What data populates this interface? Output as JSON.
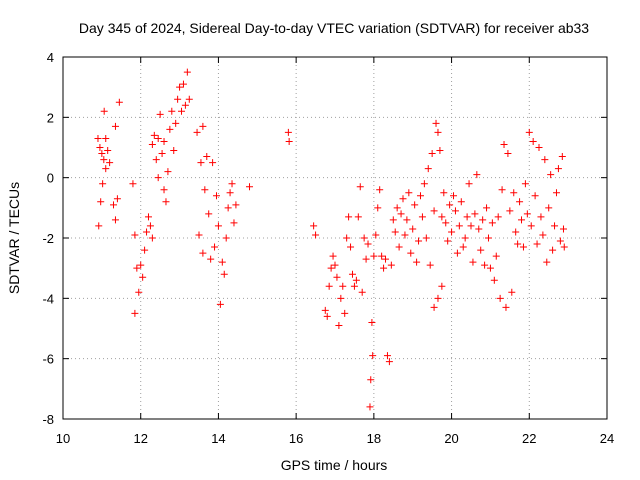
{
  "chart_data": {
    "type": "scatter",
    "title": "Day 345 of 2024, Sidereal Day-to-day VTEC variation (SDTVAR) for receiver ab33",
    "xlabel": "GPS time / hours",
    "ylabel": "SDTVAR / TECUs",
    "xlim": [
      10,
      24
    ],
    "ylim": [
      -8,
      4
    ],
    "xticks": [
      10,
      12,
      14,
      16,
      18,
      20,
      22,
      24
    ],
    "yticks": [
      -8,
      -6,
      -4,
      -2,
      0,
      2,
      4
    ],
    "grid": true,
    "marker": "+",
    "colors": {
      "series": "#ff0000",
      "grid": "#a0a0a0",
      "axis": "#000000"
    },
    "series": [
      {
        "name": "SDTVAR",
        "points": [
          [
            10.9,
            1.3
          ],
          [
            10.95,
            1.0
          ],
          [
            11.0,
            0.8
          ],
          [
            11.05,
            0.6
          ],
          [
            11.1,
            0.3
          ],
          [
            10.92,
            -1.6
          ],
          [
            10.97,
            -0.8
          ],
          [
            11.02,
            -0.2
          ],
          [
            11.06,
            2.2
          ],
          [
            11.1,
            1.3
          ],
          [
            11.15,
            0.9
          ],
          [
            11.2,
            0.5
          ],
          [
            11.35,
            1.7
          ],
          [
            11.45,
            2.5
          ],
          [
            11.3,
            -0.9
          ],
          [
            11.35,
            -1.4
          ],
          [
            11.4,
            -0.7
          ],
          [
            11.8,
            -0.2
          ],
          [
            11.85,
            -1.9
          ],
          [
            11.9,
            -3.0
          ],
          [
            11.95,
            -3.8
          ],
          [
            11.85,
            -4.5
          ],
          [
            12.0,
            -2.9
          ],
          [
            12.05,
            -3.3
          ],
          [
            12.1,
            -2.4
          ],
          [
            12.15,
            -1.8
          ],
          [
            12.2,
            -1.3
          ],
          [
            12.25,
            -1.6
          ],
          [
            12.3,
            -2.0
          ],
          [
            12.3,
            1.1
          ],
          [
            12.35,
            1.4
          ],
          [
            12.4,
            0.6
          ],
          [
            12.45,
            0.0
          ],
          [
            12.45,
            1.3
          ],
          [
            12.5,
            2.1
          ],
          [
            12.55,
            0.8
          ],
          [
            12.6,
            -0.4
          ],
          [
            12.6,
            1.2
          ],
          [
            12.65,
            -0.8
          ],
          [
            12.7,
            0.2
          ],
          [
            12.75,
            1.6
          ],
          [
            12.8,
            2.2
          ],
          [
            12.85,
            0.9
          ],
          [
            12.9,
            1.8
          ],
          [
            12.95,
            2.6
          ],
          [
            13.0,
            3.0
          ],
          [
            13.05,
            2.2
          ],
          [
            13.1,
            3.1
          ],
          [
            13.15,
            2.4
          ],
          [
            13.2,
            3.5
          ],
          [
            13.25,
            2.6
          ],
          [
            13.45,
            1.5
          ],
          [
            13.5,
            -1.9
          ],
          [
            13.55,
            0.5
          ],
          [
            13.6,
            1.7
          ],
          [
            13.6,
            -2.5
          ],
          [
            13.65,
            -0.4
          ],
          [
            13.7,
            0.7
          ],
          [
            13.75,
            -1.2
          ],
          [
            13.8,
            -2.7
          ],
          [
            13.85,
            0.5
          ],
          [
            13.9,
            -2.3
          ],
          [
            13.95,
            -0.6
          ],
          [
            14.0,
            -1.6
          ],
          [
            14.05,
            -4.2
          ],
          [
            14.1,
            -2.8
          ],
          [
            14.15,
            -3.2
          ],
          [
            14.2,
            -2.0
          ],
          [
            14.25,
            -1.0
          ],
          [
            14.3,
            -0.5
          ],
          [
            14.35,
            -0.2
          ],
          [
            14.4,
            -1.5
          ],
          [
            14.45,
            -0.9
          ],
          [
            14.8,
            -0.3
          ],
          [
            15.8,
            1.5
          ],
          [
            15.82,
            1.2
          ],
          [
            16.45,
            -1.6
          ],
          [
            16.5,
            -1.9
          ],
          [
            16.75,
            -4.4
          ],
          [
            16.8,
            -4.6
          ],
          [
            16.85,
            -3.6
          ],
          [
            16.9,
            -3.0
          ],
          [
            16.95,
            -2.6
          ],
          [
            17.0,
            -2.9
          ],
          [
            17.05,
            -3.3
          ],
          [
            17.1,
            -4.9
          ],
          [
            17.15,
            -4.0
          ],
          [
            17.2,
            -3.6
          ],
          [
            17.25,
            -4.5
          ],
          [
            17.3,
            -2.0
          ],
          [
            17.35,
            -1.3
          ],
          [
            17.4,
            -2.3
          ],
          [
            17.45,
            -3.2
          ],
          [
            17.5,
            -3.6
          ],
          [
            17.55,
            -3.4
          ],
          [
            17.6,
            -1.3
          ],
          [
            17.65,
            -0.3
          ],
          [
            17.7,
            -3.8
          ],
          [
            17.75,
            -2.0
          ],
          [
            17.8,
            -2.7
          ],
          [
            17.85,
            -2.2
          ],
          [
            17.9,
            -7.6
          ],
          [
            17.92,
            -6.7
          ],
          [
            17.95,
            -4.8
          ],
          [
            17.97,
            -5.9
          ],
          [
            18.0,
            -2.6
          ],
          [
            18.05,
            -1.9
          ],
          [
            18.1,
            -1.0
          ],
          [
            18.15,
            -0.4
          ],
          [
            18.2,
            -2.6
          ],
          [
            18.25,
            -3.0
          ],
          [
            18.3,
            -2.7
          ],
          [
            18.35,
            -5.9
          ],
          [
            18.4,
            -6.1
          ],
          [
            18.45,
            -2.9
          ],
          [
            18.5,
            -1.4
          ],
          [
            18.55,
            -1.8
          ],
          [
            18.6,
            -1.0
          ],
          [
            18.65,
            -2.3
          ],
          [
            18.7,
            -1.2
          ],
          [
            18.75,
            -0.7
          ],
          [
            18.8,
            -1.9
          ],
          [
            18.85,
            -1.4
          ],
          [
            18.9,
            -0.5
          ],
          [
            18.95,
            -2.5
          ],
          [
            19.0,
            -1.7
          ],
          [
            19.05,
            -0.9
          ],
          [
            19.1,
            -2.8
          ],
          [
            19.15,
            -2.1
          ],
          [
            19.2,
            -0.6
          ],
          [
            19.25,
            -1.3
          ],
          [
            19.3,
            -0.2
          ],
          [
            19.35,
            -2.0
          ],
          [
            19.4,
            0.3
          ],
          [
            19.45,
            -2.9
          ],
          [
            19.5,
            0.8
          ],
          [
            19.55,
            -1.1
          ],
          [
            19.6,
            1.8
          ],
          [
            19.65,
            1.5
          ],
          [
            19.7,
            0.9
          ],
          [
            19.75,
            -1.3
          ],
          [
            19.8,
            -0.5
          ],
          [
            19.85,
            -1.5
          ],
          [
            19.55,
            -4.3
          ],
          [
            19.65,
            -4.0
          ],
          [
            19.75,
            -3.6
          ],
          [
            19.9,
            -2.1
          ],
          [
            19.95,
            -0.9
          ],
          [
            20.0,
            -1.8
          ],
          [
            20.05,
            -0.6
          ],
          [
            20.1,
            -1.1
          ],
          [
            20.15,
            -2.5
          ],
          [
            20.2,
            -1.6
          ],
          [
            20.25,
            -0.8
          ],
          [
            20.3,
            -2.3
          ],
          [
            20.35,
            -2.0
          ],
          [
            20.4,
            -1.3
          ],
          [
            20.45,
            -0.2
          ],
          [
            20.5,
            -1.6
          ],
          [
            20.55,
            -2.8
          ],
          [
            20.6,
            -1.2
          ],
          [
            20.65,
            0.1
          ],
          [
            20.7,
            -1.7
          ],
          [
            20.75,
            -2.4
          ],
          [
            20.8,
            -1.4
          ],
          [
            20.85,
            -2.9
          ],
          [
            20.9,
            -1.0
          ],
          [
            20.95,
            -2.0
          ],
          [
            21.0,
            -3.0
          ],
          [
            21.05,
            -1.5
          ],
          [
            21.1,
            -3.4
          ],
          [
            21.15,
            -2.6
          ],
          [
            21.2,
            -1.3
          ],
          [
            21.25,
            -4.0
          ],
          [
            21.3,
            -0.4
          ],
          [
            21.35,
            1.1
          ],
          [
            21.4,
            -4.3
          ],
          [
            21.45,
            0.8
          ],
          [
            21.5,
            -1.1
          ],
          [
            21.55,
            -3.8
          ],
          [
            21.6,
            -0.5
          ],
          [
            21.65,
            -1.8
          ],
          [
            21.7,
            -2.2
          ],
          [
            21.75,
            -0.8
          ],
          [
            21.8,
            -1.4
          ],
          [
            21.85,
            -2.3
          ],
          [
            21.9,
            -0.2
          ],
          [
            21.95,
            -1.2
          ],
          [
            22.0,
            1.5
          ],
          [
            22.05,
            -1.6
          ],
          [
            22.1,
            1.2
          ],
          [
            22.15,
            -0.6
          ],
          [
            22.2,
            -2.2
          ],
          [
            22.25,
            1.0
          ],
          [
            22.3,
            -1.3
          ],
          [
            22.35,
            -1.9
          ],
          [
            22.4,
            0.6
          ],
          [
            22.45,
            -2.8
          ],
          [
            22.5,
            -1.0
          ],
          [
            22.55,
            0.1
          ],
          [
            22.6,
            -2.4
          ],
          [
            22.65,
            -1.6
          ],
          [
            22.7,
            -0.5
          ],
          [
            22.75,
            0.3
          ],
          [
            22.8,
            -2.1
          ],
          [
            22.85,
            0.7
          ],
          [
            22.88,
            -1.7
          ],
          [
            22.9,
            -2.3
          ]
        ]
      }
    ]
  }
}
